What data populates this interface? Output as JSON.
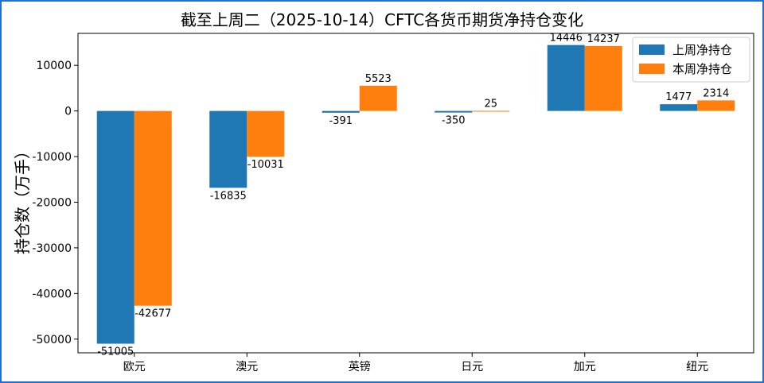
{
  "chart_data": {
    "type": "bar",
    "title": "截至上周二（2025-10-14）CFTC各货币期货净持仓变化",
    "xlabel": "",
    "ylabel": "持仓数（万手）",
    "categories": [
      "欧元",
      "澳元",
      "英镑",
      "日元",
      "加元",
      "纽元"
    ],
    "series": [
      {
        "name": "上周净持仓",
        "values": [
          -51005,
          -16835,
          -391,
          -350,
          14446,
          1477
        ],
        "color": "#1f77b4"
      },
      {
        "name": "本周净持仓",
        "values": [
          -42677,
          -10031,
          5523,
          25,
          14237,
          2314
        ],
        "color": "#ff7f0e"
      }
    ],
    "ylim": [
      -53000,
      17000
    ],
    "yticks": [
      -50000,
      -40000,
      -30000,
      -20000,
      -10000,
      0,
      10000
    ],
    "legend": "top-right",
    "grid": false
  }
}
